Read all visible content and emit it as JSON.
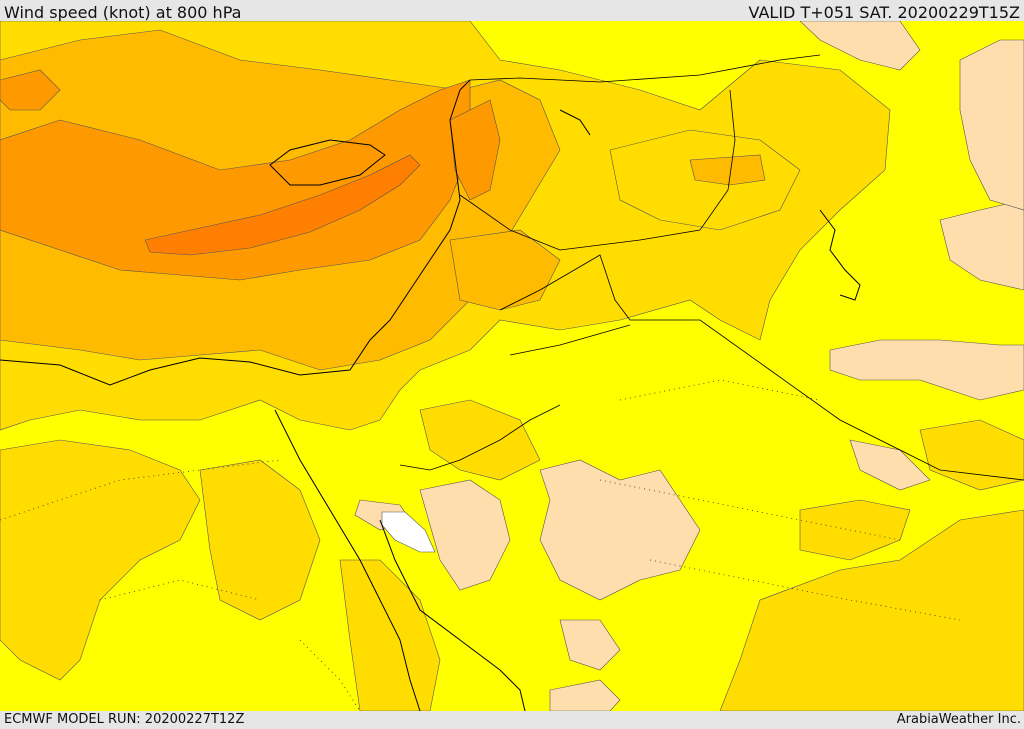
{
  "header": {
    "title": "Wind speed (knot) at 800 hPa",
    "valid": "VALID T+051 SAT. 20200229T15Z"
  },
  "footer": {
    "model_run": "ECMWF MODEL RUN: 20200227T12Z",
    "credit": "ArabiaWeather Inc."
  },
  "map": {
    "variable": "wind speed",
    "level": "800 hPa",
    "units": "knot",
    "colors": {
      "background": "#ffff00",
      "band_light": "#ffdd00",
      "band_mid": "#ffbb00",
      "band_strong": "#ff9900",
      "band_core": "#ff7f00",
      "calm_pale": "#ffdead",
      "calm_white": "#ffffff",
      "border": "#000000"
    }
  }
}
